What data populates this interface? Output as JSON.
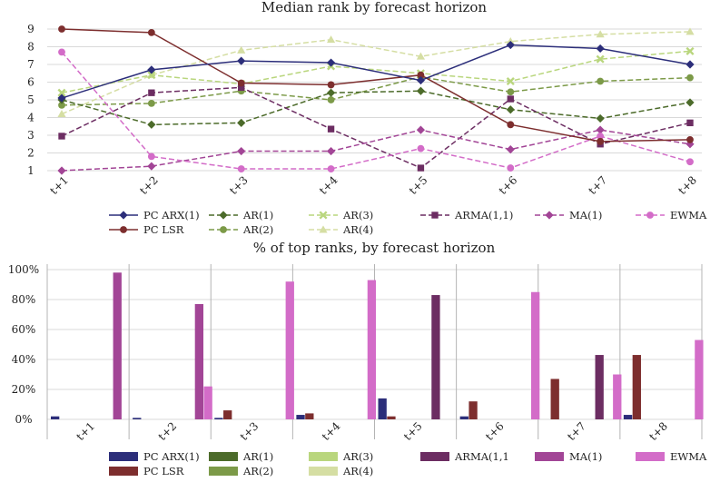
{
  "colors": {
    "pc_arx": "#2c2e7a",
    "pc_lsr": "#7d2e2e",
    "ar1": "#4c6b2a",
    "ar2": "#7c9a48",
    "ar3": "#b9d67d",
    "ar4": "#d5dea3",
    "arma": "#6c2d62",
    "ma": "#a24596",
    "ewma": "#d36cc8"
  },
  "chart_data": [
    {
      "type": "line",
      "title": "Median rank by forecast horizon",
      "categories": [
        "t+1",
        "t+2",
        "t+3",
        "t+4",
        "t+5",
        "t+6",
        "t+7",
        "t+8"
      ],
      "ylim": [
        0.7,
        9.3
      ],
      "yticks": [
        "1",
        "2",
        "3",
        "4",
        "5",
        "6",
        "7",
        "8",
        "9"
      ],
      "series": [
        {
          "key": "ar4",
          "name": "AR(4)",
          "marker": "triangle",
          "dashed": true,
          "values": [
            4.2,
            6.4,
            7.8,
            8.4,
            7.45,
            8.3,
            8.7,
            8.85
          ]
        },
        {
          "key": "ar3",
          "name": "AR(3)",
          "marker": "x",
          "dashed": true,
          "values": [
            5.4,
            6.4,
            5.9,
            6.9,
            6.5,
            6.05,
            7.3,
            7.75
          ]
        },
        {
          "key": "ar2",
          "name": "AR(2)",
          "marker": "circle",
          "dashed": true,
          "values": [
            4.7,
            4.8,
            5.5,
            5.0,
            6.3,
            5.45,
            6.05,
            6.25
          ]
        },
        {
          "key": "ar1",
          "name": "AR(1)",
          "marker": "diamond",
          "dashed": true,
          "values": [
            5.0,
            3.6,
            3.7,
            5.4,
            5.5,
            4.45,
            3.95,
            4.85
          ]
        },
        {
          "key": "arma",
          "name": "ARMA(1,1)",
          "marker": "square",
          "dashed": true,
          "values": [
            2.95,
            5.4,
            5.7,
            3.35,
            1.15,
            5.05,
            2.5,
            3.7
          ]
        },
        {
          "key": "ma",
          "name": "MA(1)",
          "marker": "diamond",
          "dashed": true,
          "values": [
            1.0,
            1.25,
            2.1,
            2.1,
            3.3,
            2.2,
            3.3,
            2.5
          ]
        },
        {
          "key": "ewma",
          "name": "EWMA",
          "marker": "circle",
          "dashed": true,
          "values": [
            7.7,
            1.8,
            1.1,
            1.1,
            2.25,
            1.15,
            2.95,
            1.5
          ]
        },
        {
          "key": "pc_lsr",
          "name": "PC LSR",
          "marker": "circle",
          "dashed": false,
          "values": [
            9.0,
            8.8,
            5.95,
            5.85,
            6.4,
            3.6,
            2.65,
            2.75
          ]
        },
        {
          "key": "pc_arx",
          "name": "PC ARX(1)",
          "marker": "diamond",
          "dashed": false,
          "values": [
            5.1,
            6.7,
            7.2,
            7.1,
            6.1,
            8.1,
            7.9,
            7.0
          ]
        }
      ],
      "legend": [
        {
          "key": "pc_arx",
          "label": "PC ARX(1)"
        },
        {
          "key": "ar1",
          "label": "AR(1)"
        },
        {
          "key": "ar3",
          "label": "AR(3)"
        },
        {
          "key": "arma",
          "label": "ARMA(1,1)"
        },
        {
          "key": "ma",
          "label": "MA(1)"
        },
        {
          "key": "ewma",
          "label": "EWMA"
        },
        {
          "key": "pc_lsr",
          "label": "PC LSR"
        },
        {
          "key": "ar2",
          "label": "AR(2)"
        },
        {
          "key": "ar4",
          "label": "AR(4)"
        }
      ]
    },
    {
      "type": "bar",
      "title": "% of top ranks, by forecast horizon",
      "categories": [
        "t+1",
        "t+2",
        "t+3",
        "t+4",
        "t+5",
        "t+6",
        "t+7",
        "t+8"
      ],
      "ylim": [
        0,
        100
      ],
      "yticks": [
        "0%",
        "20%",
        "40%",
        "60%",
        "80%",
        "100%"
      ],
      "series": [
        {
          "key": "pc_arx",
          "name": "PC ARX(1)",
          "values": [
            2,
            1,
            1,
            3,
            14,
            2,
            0,
            3
          ]
        },
        {
          "key": "pc_lsr",
          "name": "PC LSR",
          "values": [
            0,
            0,
            6,
            4,
            2,
            12,
            27,
            43
          ]
        },
        {
          "key": "ar1",
          "name": "AR(1)",
          "values": [
            0,
            0,
            0,
            0,
            0,
            0,
            0,
            0
          ]
        },
        {
          "key": "ar2",
          "name": "AR(2)",
          "values": [
            0,
            0,
            0,
            0,
            0,
            0,
            0,
            0
          ]
        },
        {
          "key": "ar3",
          "name": "AR(3)",
          "values": [
            0,
            0,
            0,
            0,
            0,
            0,
            0,
            0
          ]
        },
        {
          "key": "ar4",
          "name": "AR(4)",
          "values": [
            0,
            0,
            0,
            0,
            0,
            0,
            0,
            0
          ]
        },
        {
          "key": "arma",
          "name": "ARMA(1,1",
          "values": [
            0,
            0,
            0,
            0,
            83,
            0,
            43,
            0
          ]
        },
        {
          "key": "ma",
          "name": "MA(1)",
          "values": [
            98,
            77,
            0,
            0,
            0,
            0,
            0,
            0
          ]
        },
        {
          "key": "ewma",
          "name": "EWMA",
          "values": [
            0,
            22,
            92,
            93,
            0,
            85,
            30,
            53
          ]
        }
      ],
      "legend": [
        {
          "key": "pc_arx",
          "label": "PC ARX(1)"
        },
        {
          "key": "ar1",
          "label": "AR(1)"
        },
        {
          "key": "ar3",
          "label": "AR(3)"
        },
        {
          "key": "arma",
          "label": "ARMA(1,1"
        },
        {
          "key": "ma",
          "label": "MA(1)"
        },
        {
          "key": "ewma",
          "label": "EWMA"
        },
        {
          "key": "pc_lsr",
          "label": "PC LSR"
        },
        {
          "key": "ar2",
          "label": "AR(2)"
        },
        {
          "key": "ar4",
          "label": "AR(4)"
        }
      ]
    }
  ]
}
